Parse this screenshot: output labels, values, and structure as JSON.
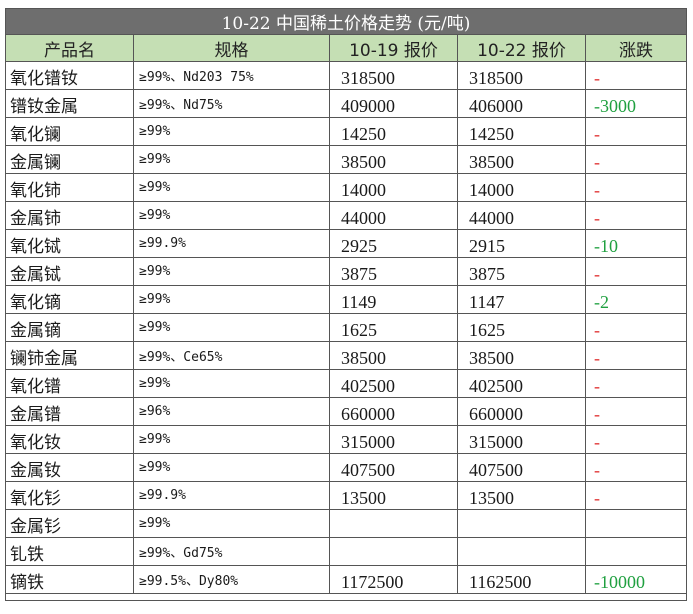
{
  "title": "10-22 中国稀土价格走势 (元/吨)",
  "headers": [
    "产品名",
    "规格",
    "10-19 报价",
    "10-22 报价",
    "涨跌"
  ],
  "rows": [
    {
      "name": "氧化镨钕",
      "spec": "≥99%、Nd203 75%",
      "p1": "318500",
      "p2": "318500",
      "chg": "-",
      "dir": "up"
    },
    {
      "name": "镨钕金属",
      "spec": "≥99%、Nd75%",
      "p1": "409000",
      "p2": "406000",
      "chg": "-3000",
      "dir": "down"
    },
    {
      "name": "氧化镧",
      "spec": "≥99%",
      "p1": "14250",
      "p2": "14250",
      "chg": "-",
      "dir": "up"
    },
    {
      "name": "金属镧",
      "spec": "≥99%",
      "p1": "38500",
      "p2": "38500",
      "chg": "-",
      "dir": "up"
    },
    {
      "name": "氧化铈",
      "spec": "≥99%",
      "p1": "14000",
      "p2": "14000",
      "chg": "-",
      "dir": "up"
    },
    {
      "name": "金属铈",
      "spec": "≥99%",
      "p1": "44000",
      "p2": "44000",
      "chg": "-",
      "dir": "up"
    },
    {
      "name": "氧化铽",
      "spec": "≥99.9%",
      "p1": "2925",
      "p2": "2915",
      "chg": "-10",
      "dir": "down"
    },
    {
      "name": "金属铽",
      "spec": "≥99%",
      "p1": "3875",
      "p2": "3875",
      "chg": "-",
      "dir": "up"
    },
    {
      "name": "氧化镝",
      "spec": "≥99%",
      "p1": "1149",
      "p2": "1147",
      "chg": "-2",
      "dir": "down"
    },
    {
      "name": "金属镝",
      "spec": "≥99%",
      "p1": "1625",
      "p2": "1625",
      "chg": "-",
      "dir": "up"
    },
    {
      "name": "镧铈金属",
      "spec": "≥99%、Ce65%",
      "p1": "38500",
      "p2": "38500",
      "chg": "-",
      "dir": "up"
    },
    {
      "name": "氧化镨",
      "spec": "≥99%",
      "p1": "402500",
      "p2": "402500",
      "chg": "-",
      "dir": "up"
    },
    {
      "name": "金属镨",
      "spec": "≥96%",
      "p1": "660000",
      "p2": "660000",
      "chg": "-",
      "dir": "up"
    },
    {
      "name": "氧化钕",
      "spec": "≥99%",
      "p1": "315000",
      "p2": "315000",
      "chg": "-",
      "dir": "up"
    },
    {
      "name": "金属钕",
      "spec": "≥99%",
      "p1": "407500",
      "p2": "407500",
      "chg": "-",
      "dir": "up"
    },
    {
      "name": "氧化钐",
      "spec": "≥99.9%",
      "p1": "13500",
      "p2": "13500",
      "chg": "-",
      "dir": "up"
    },
    {
      "name": "金属钐",
      "spec": "≥99%",
      "p1": "",
      "p2": "",
      "chg": "",
      "dir": "up"
    },
    {
      "name": "钆铁",
      "spec": "≥99%、Gd75%",
      "p1": "",
      "p2": "",
      "chg": "",
      "dir": "up"
    },
    {
      "name": "镝铁",
      "spec": "≥99.5%、Dy80%",
      "p1": "1172500",
      "p2": "1162500",
      "chg": "-10000",
      "dir": "down"
    }
  ],
  "colors": {
    "title_bg": "#6e6e6e",
    "header_bg": "#c5dfb4",
    "up": "#e03030",
    "down": "#20a040"
  }
}
